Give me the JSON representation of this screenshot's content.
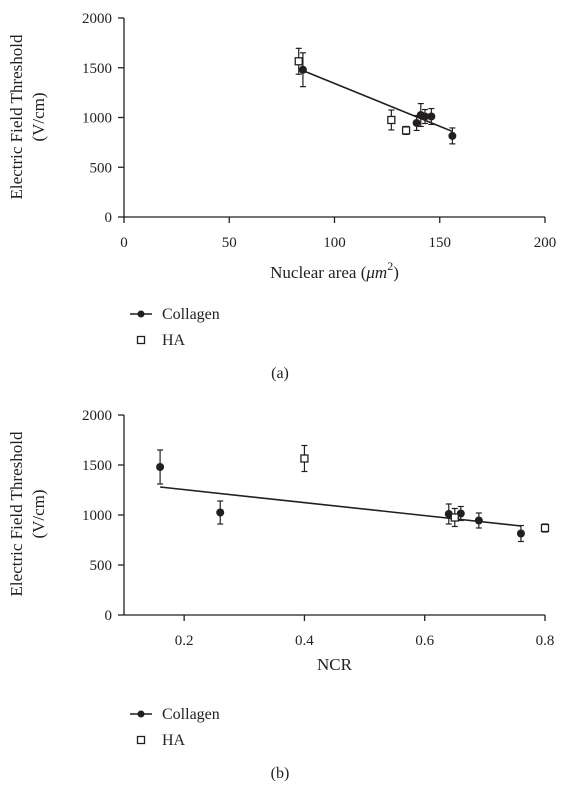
{
  "chart_data": [
    {
      "type": "scatter",
      "panel_label": "(a)",
      "xlabel": "Nuclear area (",
      "xlabel_unit": "μm",
      "xlabel_sup": "2",
      "xlabel_close": ")",
      "ylabel_line1": "Electric Field Threshold",
      "ylabel_line2": "(V/cm)",
      "xlim": [
        0,
        200
      ],
      "ylim": [
        0,
        2000
      ],
      "xticks": [
        0,
        50,
        100,
        150,
        200
      ],
      "yticks": [
        0,
        500,
        1000,
        1500,
        2000
      ],
      "xtick_labels": [
        "0",
        "50",
        "100",
        "150",
        "200"
      ],
      "ytick_labels": [
        "0",
        "500",
        "1000",
        "1500",
        "2000"
      ],
      "grid": false,
      "legend_position": "below",
      "legend": [
        "Collagen",
        "HA"
      ],
      "series": [
        {
          "name": "Collagen",
          "marker": "filled-circle",
          "points": [
            {
              "x": 85,
              "y": 1480,
              "err": 170
            },
            {
              "x": 139,
              "y": 945,
              "err": 75
            },
            {
              "x": 141,
              "y": 1025,
              "err": 115
            },
            {
              "x": 143,
              "y": 1010,
              "err": 70
            },
            {
              "x": 146,
              "y": 1010,
              "err": 80
            },
            {
              "x": 156,
              "y": 815,
              "err": 80
            }
          ]
        },
        {
          "name": "HA",
          "marker": "open-square",
          "points": [
            {
              "x": 83,
              "y": 1565,
              "err": 130
            },
            {
              "x": 127,
              "y": 975,
              "err": 100
            },
            {
              "x": 134,
              "y": 870,
              "err": 40
            }
          ]
        }
      ],
      "trendline": {
        "x": [
          84,
          156
        ],
        "y": [
          1480,
          860
        ]
      }
    },
    {
      "type": "scatter",
      "panel_label": "(b)",
      "xlabel": "NCR",
      "ylabel_line1": "Electric Field Threshold",
      "ylabel_line2": "(V/cm)",
      "xlim": [
        0.1,
        0.8
      ],
      "ylim": [
        0,
        2000
      ],
      "xticks": [
        0.2,
        0.4,
        0.6,
        0.8
      ],
      "yticks": [
        0,
        500,
        1000,
        1500,
        2000
      ],
      "xtick_labels": [
        "0.2",
        "0.4",
        "0.6",
        "0.8"
      ],
      "ytick_labels": [
        "0",
        "500",
        "1000",
        "1500",
        "2000"
      ],
      "grid": false,
      "legend_position": "below",
      "legend": [
        "Collagen",
        "HA"
      ],
      "series": [
        {
          "name": "Collagen",
          "marker": "filled-circle",
          "points": [
            {
              "x": 0.16,
              "y": 1480,
              "err": 170
            },
            {
              "x": 0.26,
              "y": 1025,
              "err": 115
            },
            {
              "x": 0.64,
              "y": 1010,
              "err": 100
            },
            {
              "x": 0.66,
              "y": 1015,
              "err": 70
            },
            {
              "x": 0.69,
              "y": 945,
              "err": 75
            },
            {
              "x": 0.76,
              "y": 815,
              "err": 80
            }
          ]
        },
        {
          "name": "HA",
          "marker": "open-square",
          "points": [
            {
              "x": 0.4,
              "y": 1565,
              "err": 130
            },
            {
              "x": 0.65,
              "y": 975,
              "err": 90
            },
            {
              "x": 0.8,
              "y": 870,
              "err": 40
            }
          ]
        }
      ],
      "trendline": {
        "x": [
          0.16,
          0.76
        ],
        "y": [
          1280,
          890
        ]
      }
    }
  ]
}
